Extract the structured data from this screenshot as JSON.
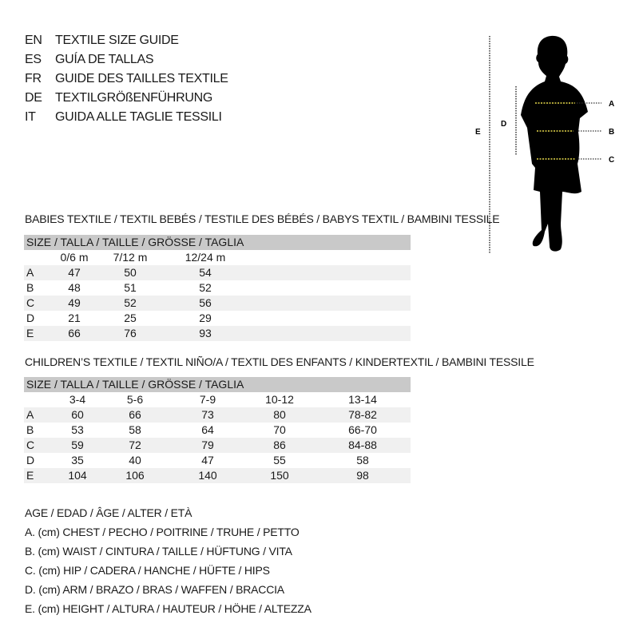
{
  "titles": [
    {
      "code": "EN",
      "text": "TEXTILE SIZE GUIDE"
    },
    {
      "code": "ES",
      "text": "GUÍA DE TALLAS"
    },
    {
      "code": "FR",
      "text": "GUIDE DES TAILLES TEXTILE"
    },
    {
      "code": "DE",
      "text": "TEXTILGRÖßENFÜHRUNG"
    },
    {
      "code": "IT",
      "text": "GUIDA ALLE TAGLIE TESSILI"
    }
  ],
  "figure": {
    "labels": {
      "A": "A",
      "B": "B",
      "C": "C",
      "D": "D",
      "E": "E"
    },
    "measure_line_color": "#e6d84a"
  },
  "babies": {
    "title": "BABIES TEXTILE / TEXTIL BEBÉS / TESTILE DES BÉBÉS / BABYS TEXTIL / BAMBINI TESSILE",
    "size_header": "SIZE / TALLA / TAILLE / GRÖSSE / TAGLIA",
    "columns": [
      "0/6 m",
      "7/12 m",
      "12/24 m"
    ],
    "rows": [
      {
        "label": "A",
        "values": [
          "47",
          "50",
          "54"
        ]
      },
      {
        "label": "B",
        "values": [
          "48",
          "51",
          "52"
        ]
      },
      {
        "label": "C",
        "values": [
          "49",
          "52",
          "56"
        ]
      },
      {
        "label": "D",
        "values": [
          "21",
          "25",
          "29"
        ]
      },
      {
        "label": "E",
        "values": [
          "66",
          "76",
          "93"
        ]
      }
    ]
  },
  "children": {
    "title": "CHILDREN’S TEXTILE / TEXTIL NIÑO/A / TEXTIL DES ENFANTS / KINDERTEXTIL / BAMBINI TESSILE",
    "size_header": "SIZE / TALLA / TAILLE / GRÖSSE / TAGLIA",
    "columns": [
      "3-4",
      "5-6",
      "7-9",
      "10-12",
      "13-14"
    ],
    "rows": [
      {
        "label": "A",
        "values": [
          "60",
          "66",
          "73",
          "80",
          "78-82"
        ]
      },
      {
        "label": "B",
        "values": [
          "53",
          "58",
          "64",
          "70",
          "66-70"
        ]
      },
      {
        "label": "C",
        "values": [
          "59",
          "72",
          "79",
          "86",
          "84-88"
        ]
      },
      {
        "label": "D",
        "values": [
          "35",
          "40",
          "47",
          "55",
          "58"
        ]
      },
      {
        "label": "E",
        "values": [
          "104",
          "106",
          "140",
          "150",
          "98"
        ]
      }
    ]
  },
  "legend": [
    "AGE / EDAD / ÂGE / ALTER / ETÀ",
    "A. (cm) CHEST / PECHO / POITRINE / TRUHE / PETTO",
    "B. (cm) WAIST / CINTURA / TAILLE / HÜFTUNG / VITA",
    "C. (cm) HIP / CADERA / HANCHE / HÜFTE / HIPS",
    "D. (cm) ARM / BRAZO / BRAS / WAFFEN / BRACCIA",
    "E. (cm) HEIGHT / ALTURA / HAUTEUR / HÖHE / ALTEZZA"
  ]
}
